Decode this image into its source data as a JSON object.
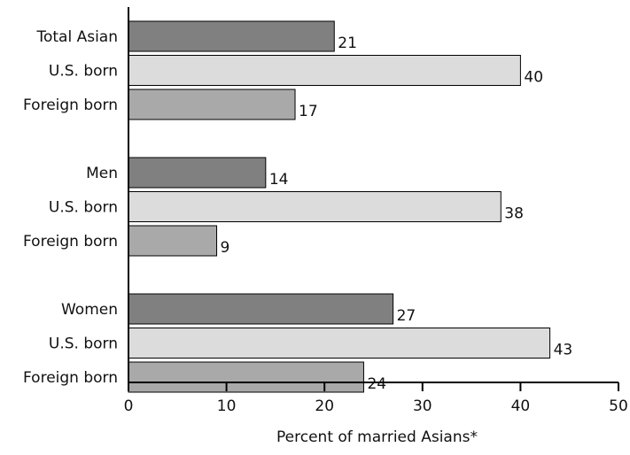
{
  "chart_data": {
    "type": "bar",
    "orientation": "horizontal",
    "title": "",
    "xlabel": "Percent of married Asians*",
    "ylabel": "",
    "xlim": [
      0,
      50
    ],
    "xticks": [
      0,
      10,
      20,
      30,
      40,
      50
    ],
    "grid": false,
    "legend": "none",
    "groups": [
      {
        "name": "Total Asian",
        "bars": [
          {
            "label": "Total Asian",
            "value": 21,
            "kind": "total"
          },
          {
            "label": "U.S. born",
            "value": 40,
            "kind": "us_born"
          },
          {
            "label": "Foreign born",
            "value": 17,
            "kind": "foreign_born"
          }
        ]
      },
      {
        "name": "Men",
        "bars": [
          {
            "label": "Men",
            "value": 14,
            "kind": "total"
          },
          {
            "label": "U.S. born",
            "value": 38,
            "kind": "us_born"
          },
          {
            "label": "Foreign born",
            "value": 9,
            "kind": "foreign_born"
          }
        ]
      },
      {
        "name": "Women",
        "bars": [
          {
            "label": "Women",
            "value": 27,
            "kind": "total"
          },
          {
            "label": "U.S. born",
            "value": 43,
            "kind": "us_born"
          },
          {
            "label": "Foreign born",
            "value": 24,
            "kind": "foreign_born"
          }
        ]
      }
    ],
    "colors": {
      "total": "#808080",
      "us_born": "#dcdcdc",
      "foreign_born": "#a9a9a9"
    }
  }
}
